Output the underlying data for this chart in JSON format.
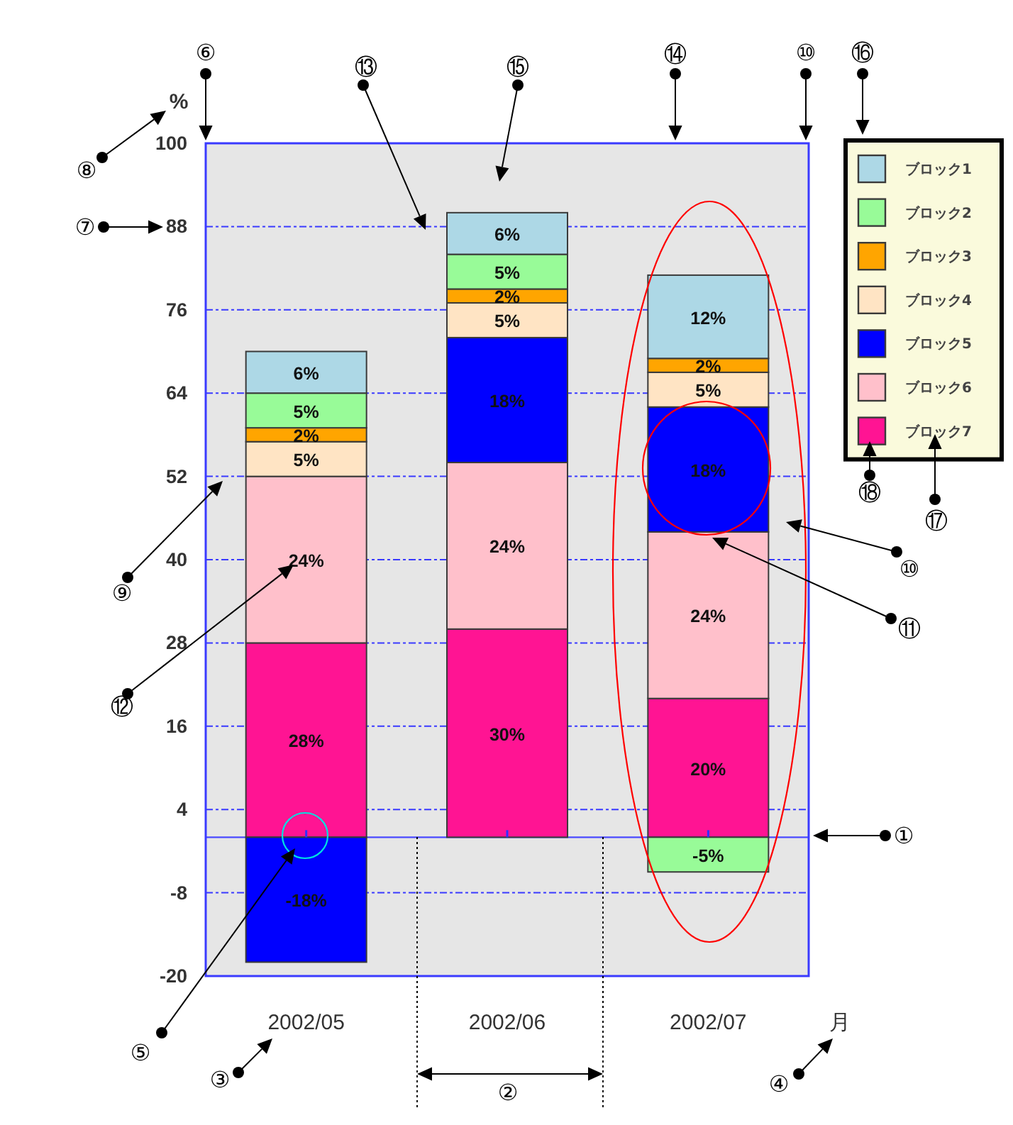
{
  "chart_data": {
    "type": "bar",
    "stacked": true,
    "categories": [
      "2002/05",
      "2002/06",
      "2002/07"
    ],
    "xlabel": "月",
    "ylabel": "%",
    "series": [
      {
        "name": "ブロック7",
        "color": "#ff1493",
        "values": [
          28,
          30,
          20
        ],
        "value_labels": [
          "28%",
          "30%",
          "20%"
        ]
      },
      {
        "name": "ブロック6",
        "color": "#ffc0cb",
        "values": [
          24,
          24,
          24
        ],
        "value_labels": [
          "24%",
          "24%",
          "24%"
        ]
      },
      {
        "name": "ブロック5",
        "color": "#0000ff",
        "values": [
          -18,
          18,
          18
        ],
        "value_labels": [
          "-18%",
          "18%",
          "18%"
        ]
      },
      {
        "name": "ブロック4",
        "color": "#ffe4c4",
        "values": [
          5,
          5,
          5
        ],
        "value_labels": [
          "5%",
          "5%",
          "5%"
        ]
      },
      {
        "name": "ブロック3",
        "color": "#ffa500",
        "values": [
          2,
          2,
          2
        ],
        "value_labels": [
          "2%",
          "2%",
          "2%"
        ]
      },
      {
        "name": "ブロック2",
        "color": "#98fb98",
        "values": [
          5,
          5,
          -5
        ],
        "value_labels": [
          "5%",
          "5%",
          "-5%"
        ]
      },
      {
        "name": "ブロック1",
        "color": "#add8e6",
        "values": [
          6,
          6,
          12
        ],
        "value_labels": [
          "6%",
          "6%",
          "12%"
        ]
      }
    ],
    "ylim": [
      -20,
      100
    ],
    "yticks": [
      -20,
      -8,
      4,
      16,
      28,
      40,
      52,
      64,
      76,
      88,
      100
    ],
    "grid": "y",
    "legend": "top right",
    "ref_lines": [
      {
        "axis": "y",
        "value": 0,
        "color": "#4a4aff",
        "line_style": "solid"
      }
    ],
    "annotations": [
      "①",
      "②",
      "③",
      "④",
      "⑤",
      "⑥",
      "⑦",
      "⑧",
      "⑨",
      "⑩",
      "⑩",
      "⑪",
      "⑫",
      "⑬",
      "⑭",
      "⑮",
      "⑯",
      "⑰",
      "⑱"
    ]
  }
}
